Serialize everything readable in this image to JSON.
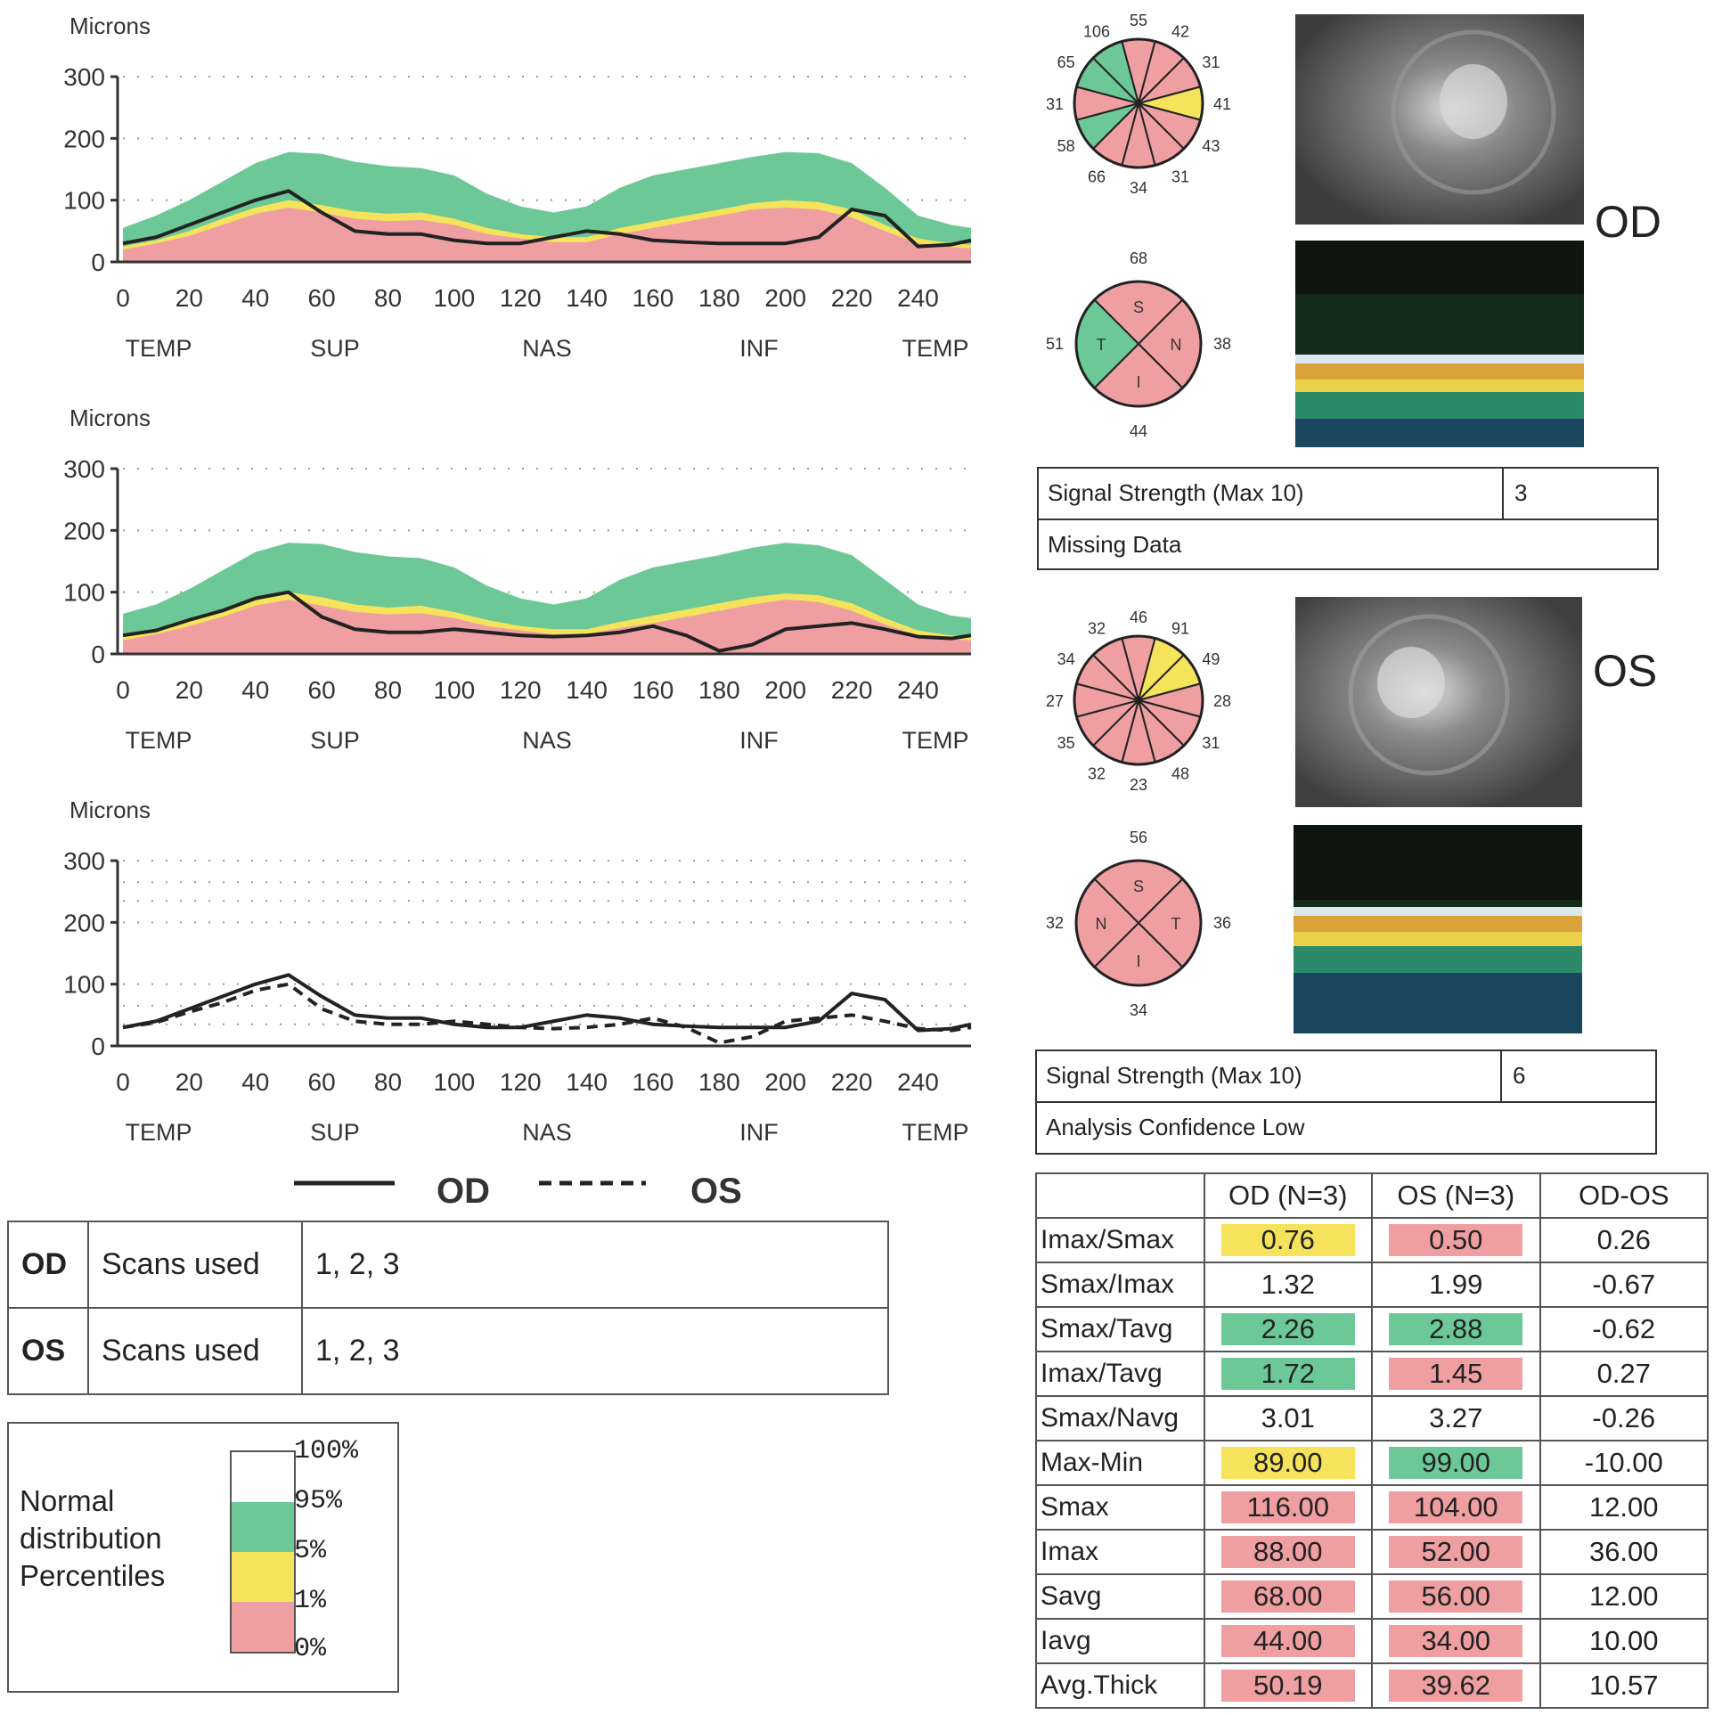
{
  "chart_data": [
    {
      "type": "area",
      "title": "",
      "ylabel": "Microns",
      "ylim": [
        0,
        300
      ],
      "yticks": [
        "0",
        "100",
        "200",
        "300"
      ],
      "xticks": [
        "0",
        "20",
        "40",
        "60",
        "80",
        "100",
        "120",
        "140",
        "160",
        "180",
        "200",
        "220",
        "240"
      ],
      "region_labels": [
        "TEMP",
        "SUP",
        "NAS",
        "INF",
        "TEMP"
      ],
      "x": [
        0,
        10,
        20,
        30,
        40,
        50,
        60,
        70,
        80,
        90,
        100,
        110,
        120,
        130,
        140,
        150,
        160,
        170,
        180,
        190,
        200,
        210,
        220,
        230,
        240,
        250,
        256
      ],
      "bands": {
        "p100": [
          55,
          75,
          100,
          130,
          160,
          178,
          175,
          162,
          155,
          152,
          140,
          110,
          90,
          80,
          90,
          120,
          140,
          150,
          160,
          170,
          178,
          176,
          160,
          120,
          75,
          60,
          55
        ],
        "p5": [
          25,
          35,
          50,
          70,
          88,
          100,
          92,
          82,
          78,
          80,
          70,
          55,
          45,
          40,
          40,
          55,
          65,
          75,
          85,
          95,
          100,
          97,
          85,
          60,
          38,
          30,
          28
        ],
        "p1": [
          20,
          30,
          42,
          60,
          78,
          88,
          80,
          70,
          66,
          68,
          60,
          45,
          38,
          32,
          32,
          45,
          55,
          65,
          75,
          85,
          88,
          85,
          72,
          50,
          30,
          24,
          22
        ]
      },
      "series": [
        {
          "name": "OD",
          "values": [
            30,
            40,
            60,
            80,
            100,
            115,
            80,
            50,
            45,
            45,
            35,
            30,
            30,
            40,
            50,
            45,
            35,
            32,
            30,
            30,
            30,
            40,
            85,
            75,
            25,
            28,
            35
          ]
        }
      ]
    },
    {
      "type": "area",
      "title": "",
      "ylabel": "Microns",
      "ylim": [
        0,
        300
      ],
      "yticks": [
        "0",
        "100",
        "200",
        "300"
      ],
      "xticks": [
        "0",
        "20",
        "40",
        "60",
        "80",
        "100",
        "120",
        "140",
        "160",
        "180",
        "200",
        "220",
        "240"
      ],
      "region_labels": [
        "TEMP",
        "SUP",
        "NAS",
        "INF",
        "TEMP"
      ],
      "x": [
        0,
        10,
        20,
        30,
        40,
        50,
        60,
        70,
        80,
        90,
        100,
        110,
        120,
        130,
        140,
        150,
        160,
        170,
        180,
        190,
        200,
        210,
        220,
        230,
        240,
        250,
        256
      ],
      "bands": {
        "p100": [
          65,
          80,
          105,
          135,
          165,
          180,
          178,
          165,
          158,
          155,
          140,
          110,
          90,
          80,
          90,
          120,
          140,
          150,
          160,
          172,
          180,
          176,
          160,
          120,
          80,
          62,
          58
        ],
        "p5": [
          30,
          40,
          55,
          72,
          90,
          100,
          92,
          80,
          75,
          78,
          68,
          55,
          45,
          40,
          40,
          52,
          62,
          72,
          82,
          92,
          98,
          95,
          82,
          58,
          38,
          30,
          28
        ],
        "p1": [
          22,
          32,
          45,
          60,
          78,
          88,
          78,
          68,
          64,
          66,
          58,
          45,
          38,
          32,
          32,
          42,
          50,
          60,
          70,
          80,
          88,
          84,
          70,
          48,
          30,
          24,
          22
        ]
      },
      "series": [
        {
          "name": "OS",
          "values": [
            30,
            38,
            55,
            70,
            90,
            100,
            60,
            40,
            35,
            35,
            40,
            35,
            30,
            28,
            30,
            35,
            45,
            30,
            5,
            15,
            40,
            45,
            50,
            40,
            28,
            25,
            30
          ]
        }
      ]
    },
    {
      "type": "line",
      "title": "",
      "ylabel": "Microns",
      "ylim": [
        0,
        300
      ],
      "yticks": [
        "0",
        "100",
        "200",
        "300"
      ],
      "xticks": [
        "0",
        "20",
        "40",
        "60",
        "80",
        "100",
        "120",
        "140",
        "160",
        "180",
        "200",
        "220",
        "240"
      ],
      "region_labels": [
        "TEMP",
        "SUP",
        "NAS",
        "INF",
        "TEMP"
      ],
      "x": [
        0,
        10,
        20,
        30,
        40,
        50,
        60,
        70,
        80,
        90,
        100,
        110,
        120,
        130,
        140,
        150,
        160,
        170,
        180,
        190,
        200,
        210,
        220,
        230,
        240,
        250,
        256
      ],
      "series": [
        {
          "name": "OD",
          "values": [
            30,
            40,
            60,
            80,
            100,
            115,
            80,
            50,
            45,
            45,
            35,
            30,
            30,
            40,
            50,
            45,
            35,
            32,
            30,
            30,
            30,
            40,
            85,
            75,
            25,
            28,
            35
          ]
        },
        {
          "name": "OS",
          "values": [
            30,
            38,
            55,
            70,
            90,
            100,
            60,
            40,
            35,
            35,
            40,
            35,
            30,
            28,
            30,
            35,
            45,
            30,
            5,
            15,
            40,
            45,
            50,
            40,
            28,
            25,
            30
          ]
        }
      ]
    }
  ],
  "colors": {
    "green": "#6cc896",
    "yellow": "#f5e35b",
    "pink": "#ef9fa2",
    "od_line": "#222222"
  },
  "line_legend": {
    "od": "OD",
    "os": "OS"
  },
  "scans": [
    {
      "eye": "OD",
      "label": "Scans used",
      "value": "1, 2, 3"
    },
    {
      "eye": "OS",
      "label": "Scans used",
      "value": "1, 2, 3"
    }
  ],
  "percentile_legend": {
    "label_lines": [
      "Normal",
      "distribution",
      "Percentiles"
    ],
    "ticks": [
      "100%",
      "95%",
      "5%",
      "1%",
      "0%"
    ]
  },
  "od": {
    "eye_label": "OD",
    "clock_values": [
      "55",
      "42",
      "31",
      "41",
      "43",
      "31",
      "34",
      "66",
      "58",
      "31",
      "65",
      "106"
    ],
    "clock_colors": [
      "pink",
      "pink",
      "pink",
      "yellow",
      "pink",
      "pink",
      "pink",
      "pink",
      "green",
      "pink",
      "green",
      "green"
    ],
    "quad": {
      "top": "68",
      "left": "51",
      "right": "38",
      "bottom": "44",
      "s": "S",
      "t": "T",
      "n": "N",
      "i": "I"
    },
    "quad_colors": {
      "s": "pink",
      "t": "green",
      "n": "pink",
      "i": "pink"
    },
    "signal_label": "Signal Strength (Max 10)",
    "signal_value": "3",
    "note": "Missing Data"
  },
  "os": {
    "eye_label": "OS",
    "clock_values": [
      "46",
      "91",
      "49",
      "28",
      "31",
      "48",
      "23",
      "32",
      "35",
      "27",
      "34",
      "32"
    ],
    "clock_colors": [
      "pink",
      "yellow",
      "yellow",
      "pink",
      "pink",
      "pink",
      "pink",
      "pink",
      "pink",
      "pink",
      "pink",
      "pink"
    ],
    "quad": {
      "top": "56",
      "left": "32",
      "right": "36",
      "bottom": "34",
      "s": "S",
      "n": "N",
      "t": "T",
      "i": "I"
    },
    "quad_colors": {
      "s": "pink",
      "n": "pink",
      "t": "pink",
      "i": "pink"
    },
    "signal_label": "Signal Strength (Max 10)",
    "signal_value": "6",
    "note": "Analysis Confidence Low"
  },
  "metrics": {
    "headers": [
      "",
      "OD (N=3)",
      "OS (N=3)",
      "OD-OS"
    ],
    "rows": [
      {
        "name": "Imax/Smax",
        "od": "0.76",
        "os": "0.50",
        "diff": "0.26",
        "od_color": "yellow",
        "os_color": "pink"
      },
      {
        "name": "Smax/Imax",
        "od": "1.32",
        "os": "1.99",
        "diff": "-0.67",
        "od_color": "",
        "os_color": ""
      },
      {
        "name": "Smax/Tavg",
        "od": "2.26",
        "os": "2.88",
        "diff": "-0.62",
        "od_color": "green",
        "os_color": "green"
      },
      {
        "name": "Imax/Tavg",
        "od": "1.72",
        "os": "1.45",
        "diff": "0.27",
        "od_color": "green",
        "os_color": "pink"
      },
      {
        "name": "Smax/Navg",
        "od": "3.01",
        "os": "3.27",
        "diff": "-0.26",
        "od_color": "",
        "os_color": ""
      },
      {
        "name": "Max-Min",
        "od": "89.00",
        "os": "99.00",
        "diff": "-10.00",
        "od_color": "yellow",
        "os_color": "green"
      },
      {
        "name": "Smax",
        "od": "116.00",
        "os": "104.00",
        "diff": "12.00",
        "od_color": "pink",
        "os_color": "pink"
      },
      {
        "name": "Imax",
        "od": "88.00",
        "os": "52.00",
        "diff": "36.00",
        "od_color": "pink",
        "os_color": "pink"
      },
      {
        "name": "Savg",
        "od": "68.00",
        "os": "56.00",
        "diff": "12.00",
        "od_color": "pink",
        "os_color": "pink"
      },
      {
        "name": "Iavg",
        "od": "44.00",
        "os": "34.00",
        "diff": "10.00",
        "od_color": "pink",
        "os_color": "pink"
      },
      {
        "name": "Avg.Thick",
        "od": "50.19",
        "os": "39.62",
        "diff": "10.57",
        "od_color": "pink",
        "os_color": "pink"
      }
    ]
  }
}
